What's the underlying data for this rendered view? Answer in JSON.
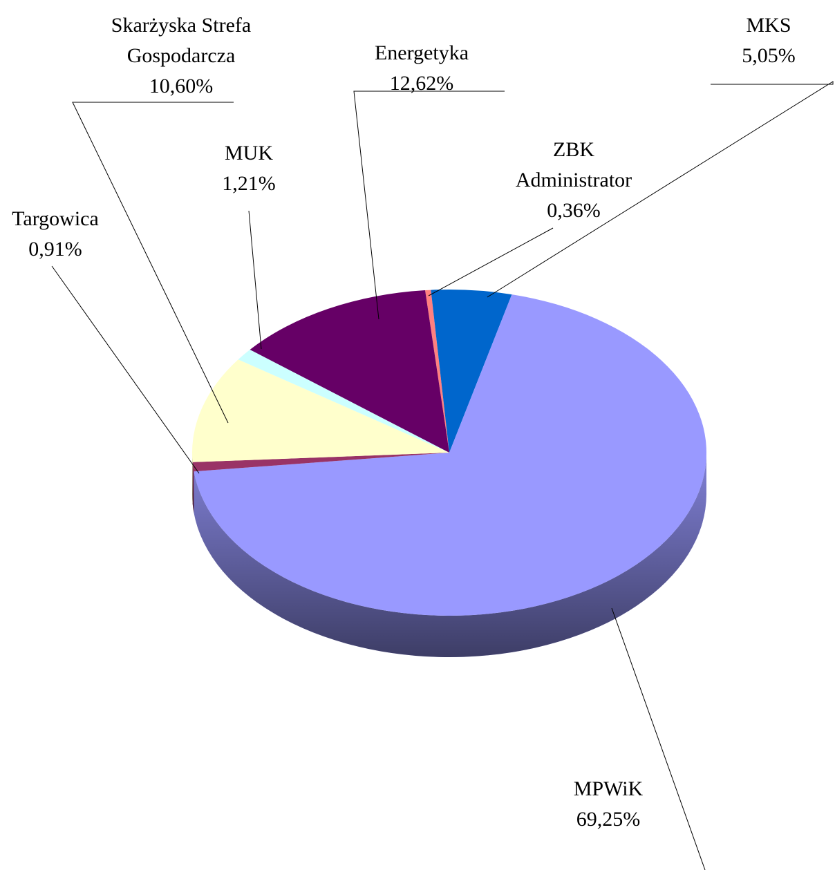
{
  "chart_data": {
    "type": "pie",
    "categories": [
      "ZBK Administrator",
      "MKS",
      "MPWiK",
      "Targowica",
      "Skarżyska Strefa Gospodarcza",
      "MUK",
      "Energetyka"
    ],
    "values": [
      0.36,
      5.05,
      69.25,
      0.91,
      10.6,
      1.21,
      12.62
    ],
    "value_labels": [
      "0,36%",
      "5,05%",
      "69,25%",
      "0,91%",
      "10,60%",
      "1,21%",
      "12,62%"
    ],
    "colors": [
      "#ff8080",
      "#0066cc",
      "#9999ff",
      "#993366",
      "#ffffcc",
      "#ccffff",
      "#660066"
    ]
  }
}
